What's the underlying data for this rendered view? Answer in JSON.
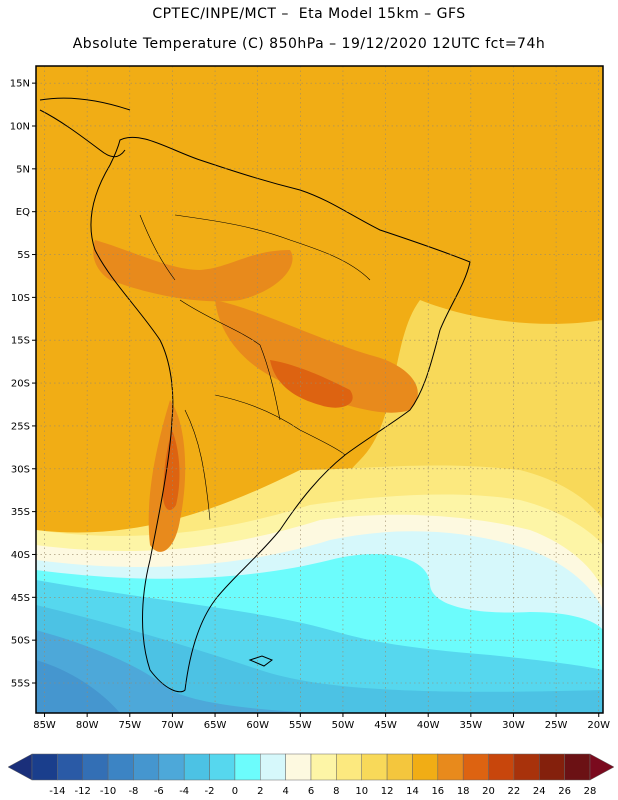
{
  "header": {
    "line1": "CPTEC/INPE/MCT –  Eta Model 15km – GFS",
    "line2": "Absolute Temperature (C) 850hPa – 19/12/2020 12UTC fct=74h"
  },
  "map": {
    "lat_labels": [
      "15N",
      "10N",
      "5N",
      "EQ",
      "5S",
      "10S",
      "15S",
      "20S",
      "25S",
      "30S",
      "35S",
      "40S",
      "45S",
      "50S",
      "55S"
    ],
    "lat_values": [
      15,
      10,
      5,
      0,
      -5,
      -10,
      -15,
      -20,
      -25,
      -30,
      -35,
      -40,
      -45,
      -50,
      -55
    ],
    "lon_labels": [
      "85W",
      "80W",
      "75W",
      "70W",
      "65W",
      "60W",
      "55W",
      "50W",
      "45W",
      "40W",
      "35W",
      "30W",
      "25W",
      "20W"
    ],
    "lon_values": [
      -85,
      -80,
      -75,
      -70,
      -65,
      -60,
      -55,
      -50,
      -45,
      -40,
      -35,
      -30,
      -25,
      -20
    ],
    "lon_range": [
      -86,
      -19.5
    ],
    "lat_range": [
      -58.5,
      17
    ],
    "grid": true
  },
  "colorbar": {
    "labels": [
      "-14",
      "-12",
      "-10",
      "-8",
      "-6",
      "-4",
      "-2",
      "0",
      "2",
      "4",
      "6",
      "8",
      "10",
      "12",
      "14",
      "16",
      "18",
      "20",
      "22",
      "24",
      "26",
      "28"
    ],
    "values": [
      -14,
      -12,
      -10,
      -8,
      -6,
      -4,
      -2,
      0,
      2,
      4,
      6,
      8,
      10,
      12,
      14,
      16,
      18,
      20,
      22,
      24,
      26,
      28
    ],
    "colors": [
      "#1a3e8c",
      "#2a5aa6",
      "#336fb5",
      "#3c84c4",
      "#4596cf",
      "#4da8d9",
      "#4cc2e4",
      "#56d7ee",
      "#6cfcfc",
      "#d6f8fb",
      "#fdf9e0",
      "#fdf5a6",
      "#fce97f",
      "#f8d959",
      "#f4c63d",
      "#f1ad15",
      "#e88a1c",
      "#dd6311",
      "#c8460c",
      "#a8320b",
      "#84200c",
      "#6b1114"
    ],
    "under_color": "#1a2f7a",
    "over_color": "#7a0a1e"
  }
}
